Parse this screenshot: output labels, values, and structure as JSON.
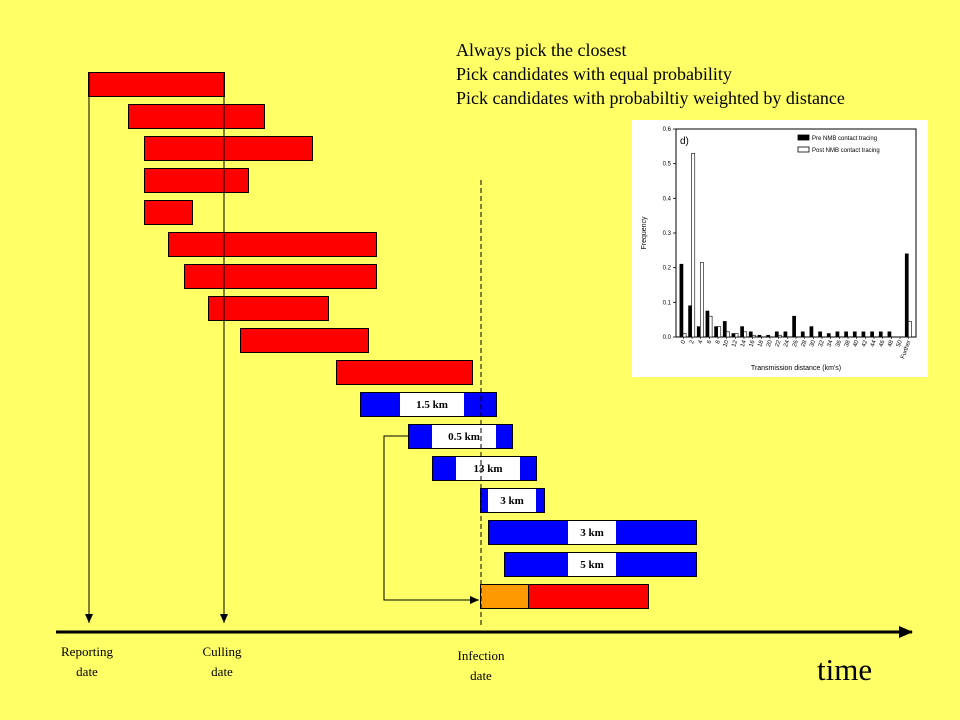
{
  "legend": {
    "line1": "Always pick the closest",
    "line2": "Pick candidates with equal probability",
    "line3": "Pick candidates with probabiltiy weighted by distance"
  },
  "distance_labels": [
    "1.5 km",
    "0.5 km",
    "13 km",
    "3 km",
    "3 km",
    "5 km"
  ],
  "axis": {
    "reporting": [
      "Reporting",
      "date"
    ],
    "culling": [
      "Culling",
      "date"
    ],
    "infection": [
      "Infection",
      "date"
    ],
    "time": "time"
  },
  "colors": {
    "background": "#ffff66",
    "red": "#ff0000",
    "blue": "#0000ff",
    "orange": "#ff9900"
  },
  "inset_chart": {
    "panel_label": "d)",
    "legend": [
      "Pre NMB contact tracing",
      "Post NMB contact tracing"
    ],
    "xlabel": "Transmission distance (km's)",
    "ylabel": "Frequency",
    "yticks": [
      "0.0",
      "0.1",
      "0.2",
      "0.3",
      "0.4",
      "0.5",
      "0.6"
    ],
    "xticks": [
      "0",
      "2",
      "4",
      "6",
      "8",
      "10",
      "12",
      "14",
      "16",
      "18",
      "20",
      "22",
      "24",
      "26",
      "28",
      "30",
      "32",
      "34",
      "36",
      "38",
      "40",
      "42",
      "44",
      "46",
      "48",
      "50",
      "Further"
    ],
    "chart_data": {
      "type": "bar",
      "ylim": [
        0,
        0.6
      ],
      "series": [
        {
          "name": "Pre NMB contact tracing",
          "values": [
            0.21,
            0.09,
            0.03,
            0.075,
            0.03,
            0.045,
            0.01,
            0.03,
            0.015,
            0.005,
            0.005,
            0.015,
            0.015,
            0.06,
            0.015,
            0.03,
            0.015,
            0.01,
            0.015,
            0.015,
            0.015,
            0.015,
            0.015,
            0.015,
            0.015,
            0,
            0.24
          ]
        },
        {
          "name": "Post NMB contact tracing",
          "values": [
            0.01,
            0.53,
            0.215,
            0.06,
            0.03,
            0.015,
            0.01,
            0.015,
            0.005,
            0,
            0,
            0.005,
            0,
            0,
            0,
            0,
            0,
            0,
            0,
            0,
            0,
            0,
            0,
            0,
            0,
            0,
            0.045
          ]
        }
      ]
    }
  }
}
